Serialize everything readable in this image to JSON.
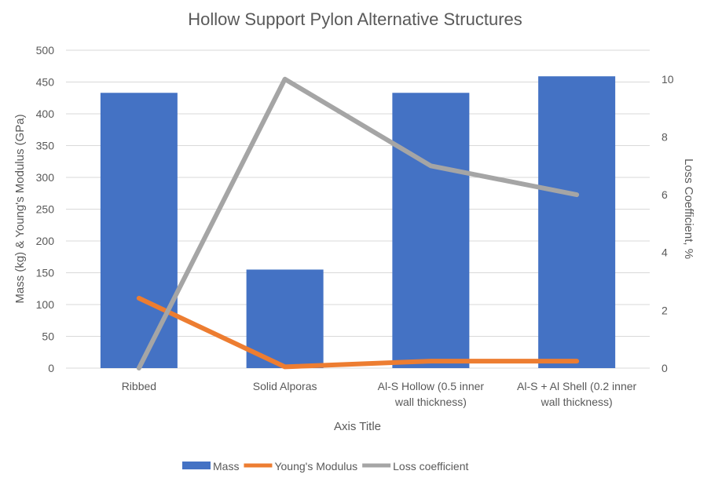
{
  "chart_data": {
    "type": "bar",
    "title": "Hollow Support Pylon Alternative Structures",
    "xlabel": "Axis Title",
    "ylabel": "Mass (kg) & Young's Modulus (GPa)",
    "y2label": "Loss Coefficient, %",
    "categories": [
      [
        "Ribbed"
      ],
      [
        "Solid Alporas"
      ],
      [
        "Al-S Hollow (0.5 inner",
        "wall thickness)"
      ],
      [
        "Al-S + Al Shell (0.2 inner",
        "wall thickness)"
      ]
    ],
    "ylim": [
      0,
      500
    ],
    "yticks": [
      0,
      50,
      100,
      150,
      200,
      250,
      300,
      350,
      400,
      450,
      500
    ],
    "y2lim": [
      0,
      11
    ],
    "y2ticks": [
      0,
      2,
      4,
      6,
      8,
      10
    ],
    "series": [
      {
        "name": "Mass",
        "type": "bar",
        "axis": "left",
        "color": "#4472c4",
        "values": [
          433,
          155,
          433,
          459
        ]
      },
      {
        "name": "Young's Modulus",
        "type": "line",
        "axis": "left",
        "color": "#ed7d31",
        "values": [
          110,
          2,
          11,
          11
        ]
      },
      {
        "name": "Loss coefficient",
        "type": "line",
        "axis": "right",
        "color": "#a5a5a5",
        "values": [
          0,
          10,
          7,
          6
        ]
      }
    ],
    "grid": true,
    "legend_position": "bottom"
  }
}
